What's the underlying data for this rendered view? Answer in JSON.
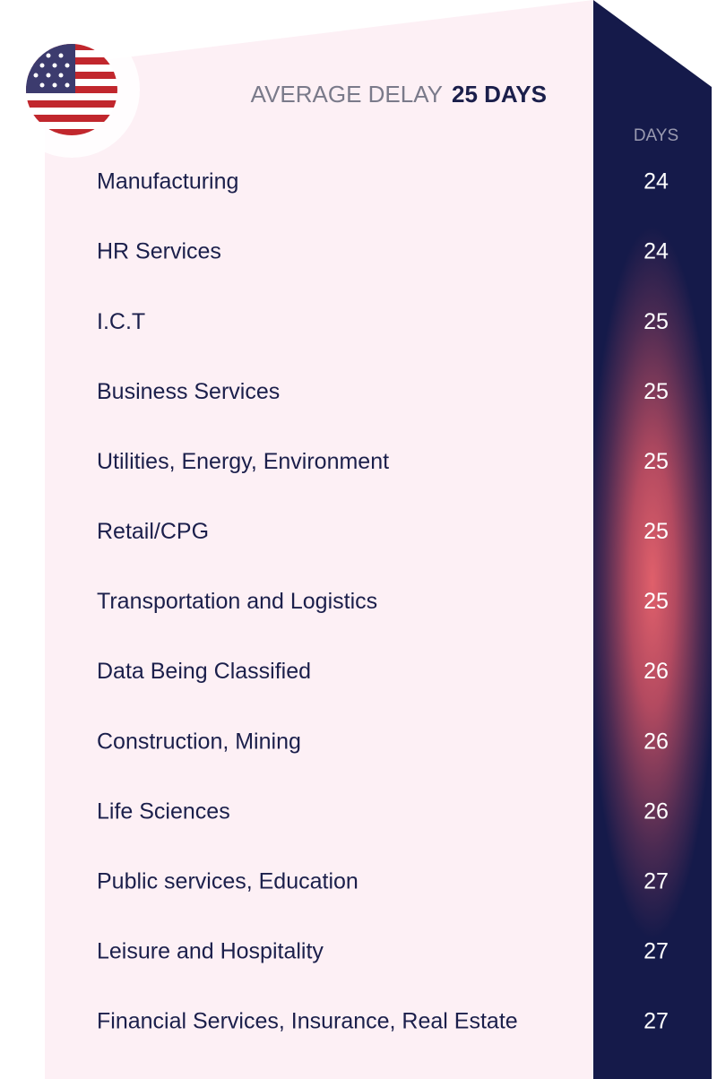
{
  "header": {
    "title": "AVERAGE DELAY",
    "highlight": "25 DAYS",
    "column": "DAYS"
  },
  "table": {
    "rows": [
      [
        "Manufacturing",
        "24"
      ],
      [
        "HR Services",
        "24"
      ],
      [
        "I.C.T",
        "25"
      ],
      [
        "Business Services",
        "25"
      ],
      [
        "Utilities, Energy, Environment",
        "25"
      ],
      [
        "Retail/CPG",
        "25"
      ],
      [
        "Transportation and Logistics",
        "25"
      ],
      [
        "Data Being Classified",
        "26"
      ],
      [
        "Construction, Mining",
        "26"
      ],
      [
        "Life Sciences",
        "26"
      ],
      [
        "Public services, Education",
        "27"
      ],
      [
        "Leisure and Hospitality",
        "27"
      ],
      [
        "Financial Services, Insurance, Real Estate",
        "27"
      ]
    ]
  }
}
